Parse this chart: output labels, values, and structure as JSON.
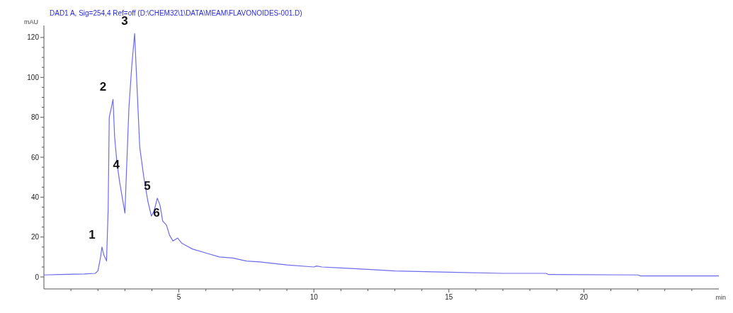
{
  "chart_data": {
    "type": "line",
    "title": "DAD1 A, Sig=254,4 Ref=off (D:\\CHEM32\\1\\DATA\\MEAM\\FLAVONOIDES-001.D)",
    "ylabel": "mAU",
    "xlabel": "min",
    "xlim": [
      0,
      25
    ],
    "ylim": [
      -6,
      126
    ],
    "xticks": [
      {
        "value": 1,
        "label": null
      },
      {
        "value": 2,
        "label": null
      },
      {
        "value": 3,
        "label": null
      },
      {
        "value": 4,
        "label": null
      },
      5,
      {
        "value": 6,
        "label": null
      },
      {
        "value": 7,
        "label": null
      },
      {
        "value": 8,
        "label": null
      },
      {
        "value": 9,
        "label": null
      },
      10,
      {
        "value": 11,
        "label": null
      },
      {
        "value": 12,
        "label": null
      },
      {
        "value": 13,
        "label": null
      },
      {
        "value": 14,
        "label": null
      },
      15,
      {
        "value": 16,
        "label": null
      },
      {
        "value": 17,
        "label": null
      },
      {
        "value": 18,
        "label": null
      },
      {
        "value": 19,
        "label": null
      },
      20,
      {
        "value": 21,
        "label": null
      },
      {
        "value": 22,
        "label": null
      },
      {
        "value": 23,
        "label": null
      },
      {
        "value": 24,
        "label": null
      }
    ],
    "yticks": [
      0,
      {
        "value": 5,
        "label": null
      },
      {
        "value": 10,
        "label": null
      },
      {
        "value": 15,
        "label": null
      },
      20,
      {
        "value": 25,
        "label": null
      },
      {
        "value": 30,
        "label": null
      },
      {
        "value": 35,
        "label": null
      },
      40,
      {
        "value": 45,
        "label": null
      },
      {
        "value": 50,
        "label": null
      },
      {
        "value": 55,
        "label": null
      },
      60,
      {
        "value": 65,
        "label": null
      },
      {
        "value": 70,
        "label": null
      },
      {
        "value": 75,
        "label": null
      },
      80,
      {
        "value": 85,
        "label": null
      },
      {
        "value": 90,
        "label": null
      },
      {
        "value": 95,
        "label": null
      },
      100,
      {
        "value": 105,
        "label": null
      },
      {
        "value": 110,
        "label": null
      },
      {
        "value": 115,
        "label": null
      },
      120
    ],
    "grid": false,
    "marker": "none",
    "line_style": "solid",
    "series": [
      {
        "color": "#6b6bf0",
        "x": [
          0,
          0.6,
          1.5,
          1.9,
          2.0,
          2.1,
          2.15,
          2.22,
          2.32,
          2.38,
          2.42,
          2.5,
          2.56,
          2.62,
          2.7,
          2.8,
          3.0,
          3.05,
          3.15,
          3.25,
          3.36,
          3.45,
          3.55,
          3.7,
          3.85,
          3.98,
          4.08,
          4.2,
          4.3,
          4.4,
          4.54,
          4.65,
          4.78,
          4.95,
          5.1,
          5.3,
          5.5,
          6.0,
          6.5,
          7.0,
          7.5,
          8.0,
          9.0,
          10.0,
          10.1,
          10.3,
          11,
          12,
          13,
          15,
          17,
          18.6,
          18.7,
          22,
          22.1,
          25
        ],
        "values": [
          1,
          1.2,
          1.5,
          1.8,
          3,
          10,
          15,
          11,
          8,
          34,
          80,
          85,
          89,
          70,
          58,
          48,
          32,
          50,
          85,
          105,
          122,
          95,
          65,
          50,
          38,
          30.5,
          33,
          39.5,
          36,
          28,
          26,
          21,
          18,
          19.5,
          17,
          15.5,
          14,
          12,
          10,
          9.5,
          8,
          7.5,
          6,
          5,
          5.5,
          5,
          4.5,
          3.8,
          3,
          2.4,
          1.8,
          1.8,
          1.2,
          1,
          0.5,
          0.5
        ]
      }
    ],
    "annotations": [
      {
        "text": "1",
        "x": 2.15,
        "y": 15
      },
      {
        "text": "2",
        "x": 2.56,
        "y": 89
      },
      {
        "text": "3",
        "x": 3.36,
        "y": 122
      },
      {
        "text": "4",
        "x": 3.05,
        "y": 50
      },
      {
        "text": "5",
        "x": 4.2,
        "y": 39.5
      },
      {
        "text": "6",
        "x": 4.54,
        "y": 26
      }
    ]
  }
}
